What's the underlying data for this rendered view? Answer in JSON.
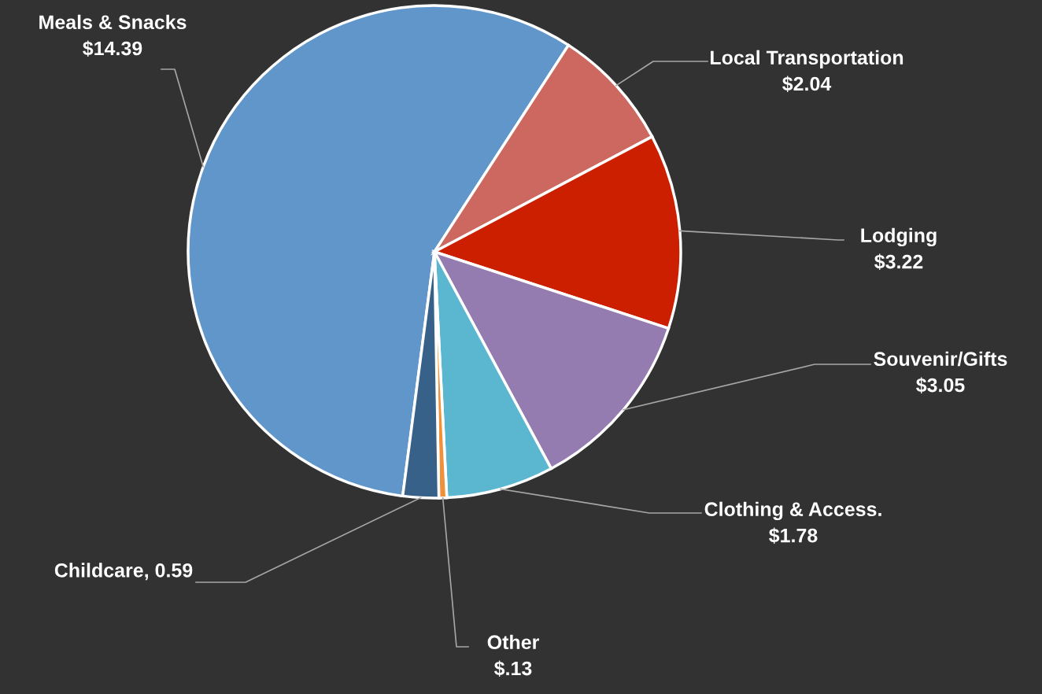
{
  "chart_data": {
    "type": "pie",
    "categories": [
      "Meals & Snacks",
      "Local Transportation",
      "Lodging",
      "Souvenir/Gifts",
      "Clothing & Access.",
      "Other",
      "Childcare"
    ],
    "values": [
      14.39,
      2.04,
      3.22,
      3.05,
      1.78,
      0.13,
      0.59
    ],
    "value_labels": [
      "$14.39",
      "$2.04",
      "$3.22",
      "$3.05",
      "$1.78",
      "$.13",
      "0.59"
    ],
    "colors": [
      "#6096c9",
      "#cd6860",
      "#cc1f00",
      "#947bb0",
      "#5bb6cf",
      "#f0903a",
      "#376189"
    ],
    "legend": false
  }
}
